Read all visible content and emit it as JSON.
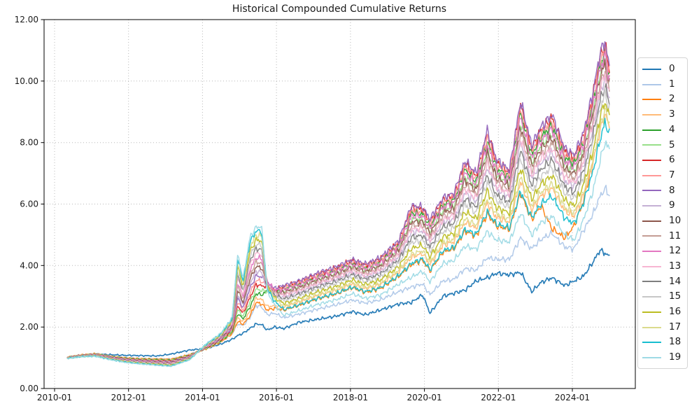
{
  "figure": {
    "background": "#ffffff"
  },
  "colors": {
    "grid": "#b8b8b8",
    "spine": "#000000",
    "text": "#1a1a1a",
    "legend_border": "#d5d5d5"
  },
  "chart_data": {
    "type": "line",
    "title": "Historical Compounded Cumulative Returns",
    "grid": true,
    "grid_style": "dotted",
    "legend_position": "right",
    "x_axis": {
      "tick_labels": [
        "2010-01",
        "2012-01",
        "2014-01",
        "2016-01",
        "2018-01",
        "2020-01",
        "2022-01",
        "2024-01"
      ],
      "tick_years": [
        2010,
        2012,
        2014,
        2016,
        2018,
        2020,
        2022,
        2024
      ]
    },
    "y_axis": {
      "tick_labels": [
        "0.00",
        "2.00",
        "4.00",
        "6.00",
        "8.00",
        "10.00",
        "12.00"
      ],
      "tick_values": [
        0,
        2,
        4,
        6,
        8,
        10,
        12
      ],
      "range": [
        0,
        12
      ]
    },
    "x_years": [
      2010.35,
      2010.7,
      2011.1,
      2011.5,
      2011.9,
      2012.3,
      2012.8,
      2013.15,
      2013.65,
      2014.1,
      2014.5,
      2014.8,
      2014.95,
      2015.1,
      2015.28,
      2015.45,
      2015.6,
      2015.75,
      2015.95,
      2016.2,
      2016.6,
      2017.1,
      2017.6,
      2018.05,
      2018.4,
      2018.8,
      2019.3,
      2019.65,
      2019.95,
      2020.15,
      2020.5,
      2020.8,
      2021.1,
      2021.4,
      2021.7,
      2021.95,
      2022.3,
      2022.6,
      2022.9,
      2023.15,
      2023.45,
      2023.8,
      2024.05,
      2024.3,
      2024.55,
      2024.75,
      2024.88,
      2025.0
    ],
    "band_low": [
      0.975,
      1.03,
      1.05,
      0.94,
      0.85,
      0.8,
      0.75,
      0.72,
      0.93,
      1.28,
      1.5,
      1.75,
      2.05,
      2.0,
      2.2,
      2.65,
      2.6,
      2.35,
      2.45,
      2.35,
      2.5,
      2.7,
      2.85,
      3.05,
      2.9,
      3.0,
      3.35,
      3.55,
      3.75,
      3.4,
      4.0,
      4.1,
      4.55,
      4.45,
      5.0,
      4.75,
      4.7,
      5.6,
      4.9,
      5.3,
      5.5,
      4.9,
      4.75,
      5.4,
      6.3,
      7.3,
      7.9,
      7.7
    ],
    "band_high": [
      1.025,
      1.09,
      1.13,
      1.06,
      1.01,
      0.98,
      0.97,
      0.96,
      1.11,
      1.45,
      1.8,
      2.3,
      4.35,
      3.6,
      4.9,
      5.28,
      5.25,
      3.9,
      3.4,
      3.35,
      3.5,
      3.75,
      3.95,
      4.2,
      4.05,
      4.25,
      4.8,
      5.95,
      5.9,
      5.5,
      6.2,
      6.35,
      7.4,
      7.0,
      8.4,
      7.45,
      7.1,
      9.35,
      7.9,
      8.5,
      8.9,
      7.8,
      7.6,
      8.3,
      9.6,
      10.9,
      11.3,
      10.45
    ],
    "era_breaks": {
      "early_end_index": 8,
      "spike_end_index": 16,
      "blend_index_half": 17,
      "blend_index_threequarter": 18
    },
    "spike_cap": {
      "t_start": 2015.33,
      "t_end": 2015.71,
      "max_value": 5.29
    },
    "series": [
      {
        "label": "0",
        "color": "#1f77b4",
        "mode": "custom",
        "values": [
          1.0,
          1.07,
          1.12,
          1.1,
          1.08,
          1.07,
          1.06,
          1.12,
          1.25,
          1.3,
          1.45,
          1.6,
          1.72,
          1.8,
          1.95,
          2.1,
          2.08,
          1.9,
          2.0,
          1.95,
          2.15,
          2.25,
          2.35,
          2.5,
          2.4,
          2.55,
          2.75,
          2.8,
          3.05,
          2.45,
          3.0,
          3.1,
          3.2,
          3.5,
          3.6,
          3.75,
          3.7,
          3.78,
          3.15,
          3.45,
          3.6,
          3.35,
          3.5,
          3.65,
          4.1,
          4.5,
          4.4,
          4.3
        ]
      },
      {
        "label": "1",
        "color": "#aec7e8",
        "mode": "custom",
        "values": [
          1.02,
          1.09,
          1.13,
          1.06,
          1.01,
          0.98,
          0.97,
          0.96,
          1.11,
          1.3,
          1.52,
          1.78,
          2.1,
          2.05,
          2.3,
          2.7,
          2.65,
          2.4,
          2.45,
          2.3,
          2.42,
          2.58,
          2.72,
          2.88,
          2.78,
          2.88,
          3.15,
          3.3,
          3.4,
          3.05,
          3.5,
          3.55,
          3.9,
          3.85,
          4.25,
          4.2,
          4.2,
          4.9,
          4.55,
          4.85,
          5.05,
          4.6,
          4.55,
          5.15,
          5.65,
          6.25,
          6.5,
          6.3
        ]
      },
      {
        "label": "2",
        "color": "#ff7f0e",
        "mode": "custom",
        "values": [
          1.02,
          1.09,
          1.13,
          1.05,
          1.0,
          0.97,
          0.96,
          0.95,
          1.1,
          1.29,
          1.52,
          1.78,
          2.18,
          2.09,
          2.35,
          2.8,
          2.75,
          2.55,
          2.61,
          2.55,
          2.7,
          2.91,
          3.07,
          3.28,
          3.13,
          3.25,
          3.64,
          4.03,
          4.18,
          3.82,
          4.44,
          4.55,
          5.12,
          4.96,
          5.68,
          5.29,
          5.18,
          6.35,
          5.5,
          5.94,
          5.2,
          4.9,
          5.3,
          6.1,
          7.35,
          null,
          null,
          null
        ]
      },
      {
        "label": "3",
        "color": "#ffbb78",
        "mode": "band",
        "pos_early": 0.889,
        "pos_spike": 0.111,
        "pos_late": 0.3
      },
      {
        "label": "4",
        "color": "#2ca02c",
        "mode": "band",
        "pos_early": 0.833,
        "pos_spike": 0.167,
        "pos_late": 0.9
      },
      {
        "label": "5",
        "color": "#98df8a",
        "mode": "band",
        "pos_early": 0.778,
        "pos_spike": 0.222,
        "pos_late": 0.82
      },
      {
        "label": "6",
        "color": "#d62728",
        "mode": "band",
        "pos_early": 0.722,
        "pos_spike": 0.278,
        "pos_late": 0.97
      },
      {
        "label": "7",
        "color": "#ff9896",
        "mode": "band",
        "pos_early": 0.667,
        "pos_spike": 0.333,
        "pos_late": 0.94
      },
      {
        "label": "8",
        "color": "#9467bd",
        "mode": "band",
        "pos_early": 0.611,
        "pos_spike": 0.389,
        "pos_late": 1.0
      },
      {
        "label": "9",
        "color": "#c5b0d5",
        "mode": "band",
        "pos_early": 0.556,
        "pos_spike": 0.444,
        "pos_late": 0.64
      },
      {
        "label": "10",
        "color": "#8c564b",
        "mode": "band",
        "pos_early": 0.5,
        "pos_spike": 0.5,
        "pos_late": 0.78
      },
      {
        "label": "11",
        "color": "#c49c94",
        "mode": "band",
        "pos_early": 0.444,
        "pos_spike": 0.556,
        "pos_late": 0.73
      },
      {
        "label": "12",
        "color": "#e377c2",
        "mode": "band",
        "pos_early": 0.389,
        "pos_spike": 0.611,
        "pos_late": 0.86
      },
      {
        "label": "13",
        "color": "#f7b6d2",
        "mode": "band",
        "pos_early": 0.333,
        "pos_spike": 0.667,
        "pos_late": 0.68
      },
      {
        "label": "14",
        "color": "#7f7f7f",
        "mode": "band",
        "pos_early": 0.278,
        "pos_spike": 0.722,
        "pos_late": 0.57
      },
      {
        "label": "15",
        "color": "#c7c7c7",
        "mode": "band",
        "pos_early": 0.222,
        "pos_spike": 0.778,
        "pos_late": 0.5
      },
      {
        "label": "16",
        "color": "#bcbd22",
        "mode": "band",
        "pos_early": 0.167,
        "pos_spike": 0.833,
        "pos_late": 0.42
      },
      {
        "label": "17",
        "color": "#dbdb8d",
        "mode": "band",
        "pos_early": 0.111,
        "pos_spike": 0.889,
        "pos_late": 0.34
      },
      {
        "label": "18",
        "color": "#17becf",
        "mode": "band",
        "pos_early": 0.056,
        "pos_spike": 0.944,
        "pos_late": 0.22
      },
      {
        "label": "19",
        "color": "#9edae5",
        "mode": "band",
        "pos_early": 0.0,
        "pos_spike": 1.0,
        "pos_late": 0.03
      }
    ]
  }
}
